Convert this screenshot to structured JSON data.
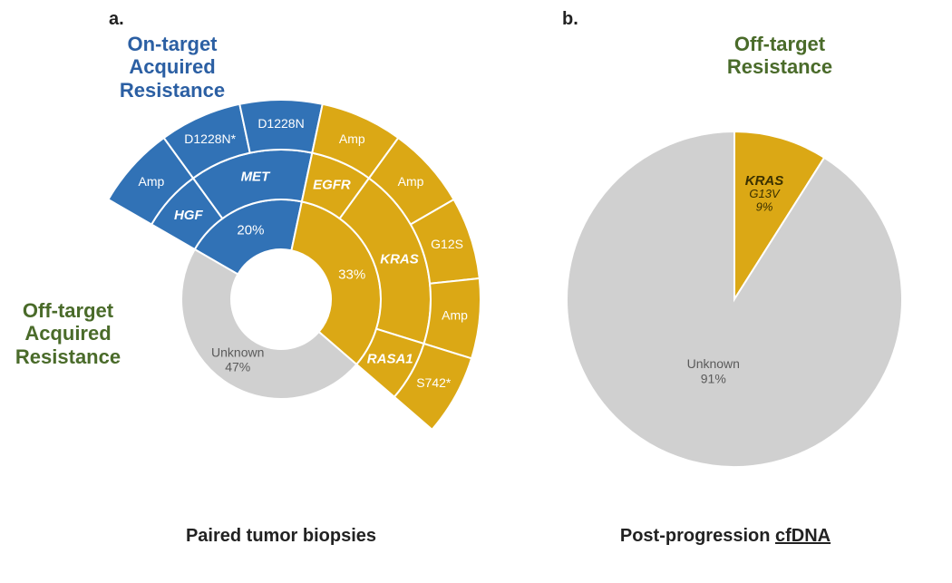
{
  "panel_a": {
    "label": "a.",
    "title_on": "On-target\nAcquired\nResistance",
    "title_off": "Off-target\nAcquired\nResistance",
    "caption": "Paired tumor biopsies",
    "colors": {
      "on_target": "#3172b6",
      "off_target": "#dba815",
      "unknown": "#d0d0d0",
      "hole": "#ffffff",
      "divider": "#ffffff"
    },
    "ring_radii": {
      "hole": 55,
      "r1": 110,
      "r2": 165,
      "r3": 220
    },
    "slice_stroke_width": 2,
    "start_angle_deg": -60,
    "inner": [
      {
        "label": "20%",
        "value": 20,
        "group": "on"
      },
      {
        "label": "33%",
        "value": 33,
        "group": "off"
      },
      {
        "label": "Unknown\n47%",
        "value": 47,
        "group": "unknown"
      }
    ],
    "middle": [
      {
        "label": "HGF",
        "span_pct": 6.6667,
        "group": "on",
        "italic": true
      },
      {
        "label": "MET",
        "span_pct": 13.3333,
        "group": "on",
        "italic": true
      },
      {
        "label": "EGFR",
        "span_pct": 6.6667,
        "group": "off",
        "italic": true
      },
      {
        "label": "KRAS",
        "span_pct": 19.8,
        "group": "off",
        "italic": true
      },
      {
        "label": "RASA1",
        "span_pct": 6.5333,
        "group": "off",
        "italic": true
      }
    ],
    "outer": [
      {
        "label": "Amp",
        "span_pct": 6.6667,
        "group": "on"
      },
      {
        "label": "D1228N*",
        "span_pct": 6.6667,
        "group": "on"
      },
      {
        "label": "D1228N",
        "span_pct": 6.6667,
        "group": "on"
      },
      {
        "label": "Amp",
        "span_pct": 6.6667,
        "group": "off"
      },
      {
        "label": "Amp",
        "span_pct": 6.6667,
        "group": "off"
      },
      {
        "label": "G12S",
        "span_pct": 6.6667,
        "group": "off"
      },
      {
        "label": "Amp",
        "span_pct": 6.4667,
        "group": "off"
      },
      {
        "label": "S742*",
        "span_pct": 6.5333,
        "group": "off"
      }
    ]
  },
  "panel_b": {
    "label": "b.",
    "title": "Off-target\nResistance",
    "caption": "Post-progression cfDNA",
    "caption_underline_word": "cfDNA",
    "colors": {
      "off_target": "#dba815",
      "unknown": "#d0d0d0",
      "divider": "#ffffff"
    },
    "radius": 185,
    "slice_stroke_width": 2,
    "start_angle_deg": 0,
    "slices": [
      {
        "label_gene": "KRAS",
        "label_sub": "G13V",
        "label_pct": "9%",
        "value": 9,
        "color_key": "off_target"
      },
      {
        "label": "Unknown\n91%",
        "value": 91,
        "color_key": "unknown"
      }
    ]
  },
  "font": {
    "panel_label_size": 20,
    "title_size": 22,
    "caption_size": 20,
    "ring_label_size": 14,
    "ring_gene_size": 15
  }
}
